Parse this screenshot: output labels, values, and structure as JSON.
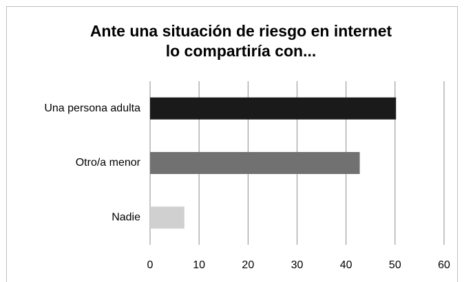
{
  "chart_data": {
    "type": "barh",
    "title": [
      "Ante una situación de riesgo en internet",
      "lo compartiría con..."
    ],
    "categories": [
      "Una persona adulta",
      "Otro/a menor",
      "Nadie"
    ],
    "values": [
      50.2,
      42.8,
      7
    ],
    "colors": [
      "#1a1a1a",
      "#717171",
      "#d0d0d0"
    ],
    "xlim": [
      0,
      60
    ],
    "xticks": [
      0,
      10,
      20,
      30,
      40,
      50,
      60
    ],
    "grid": true
  }
}
